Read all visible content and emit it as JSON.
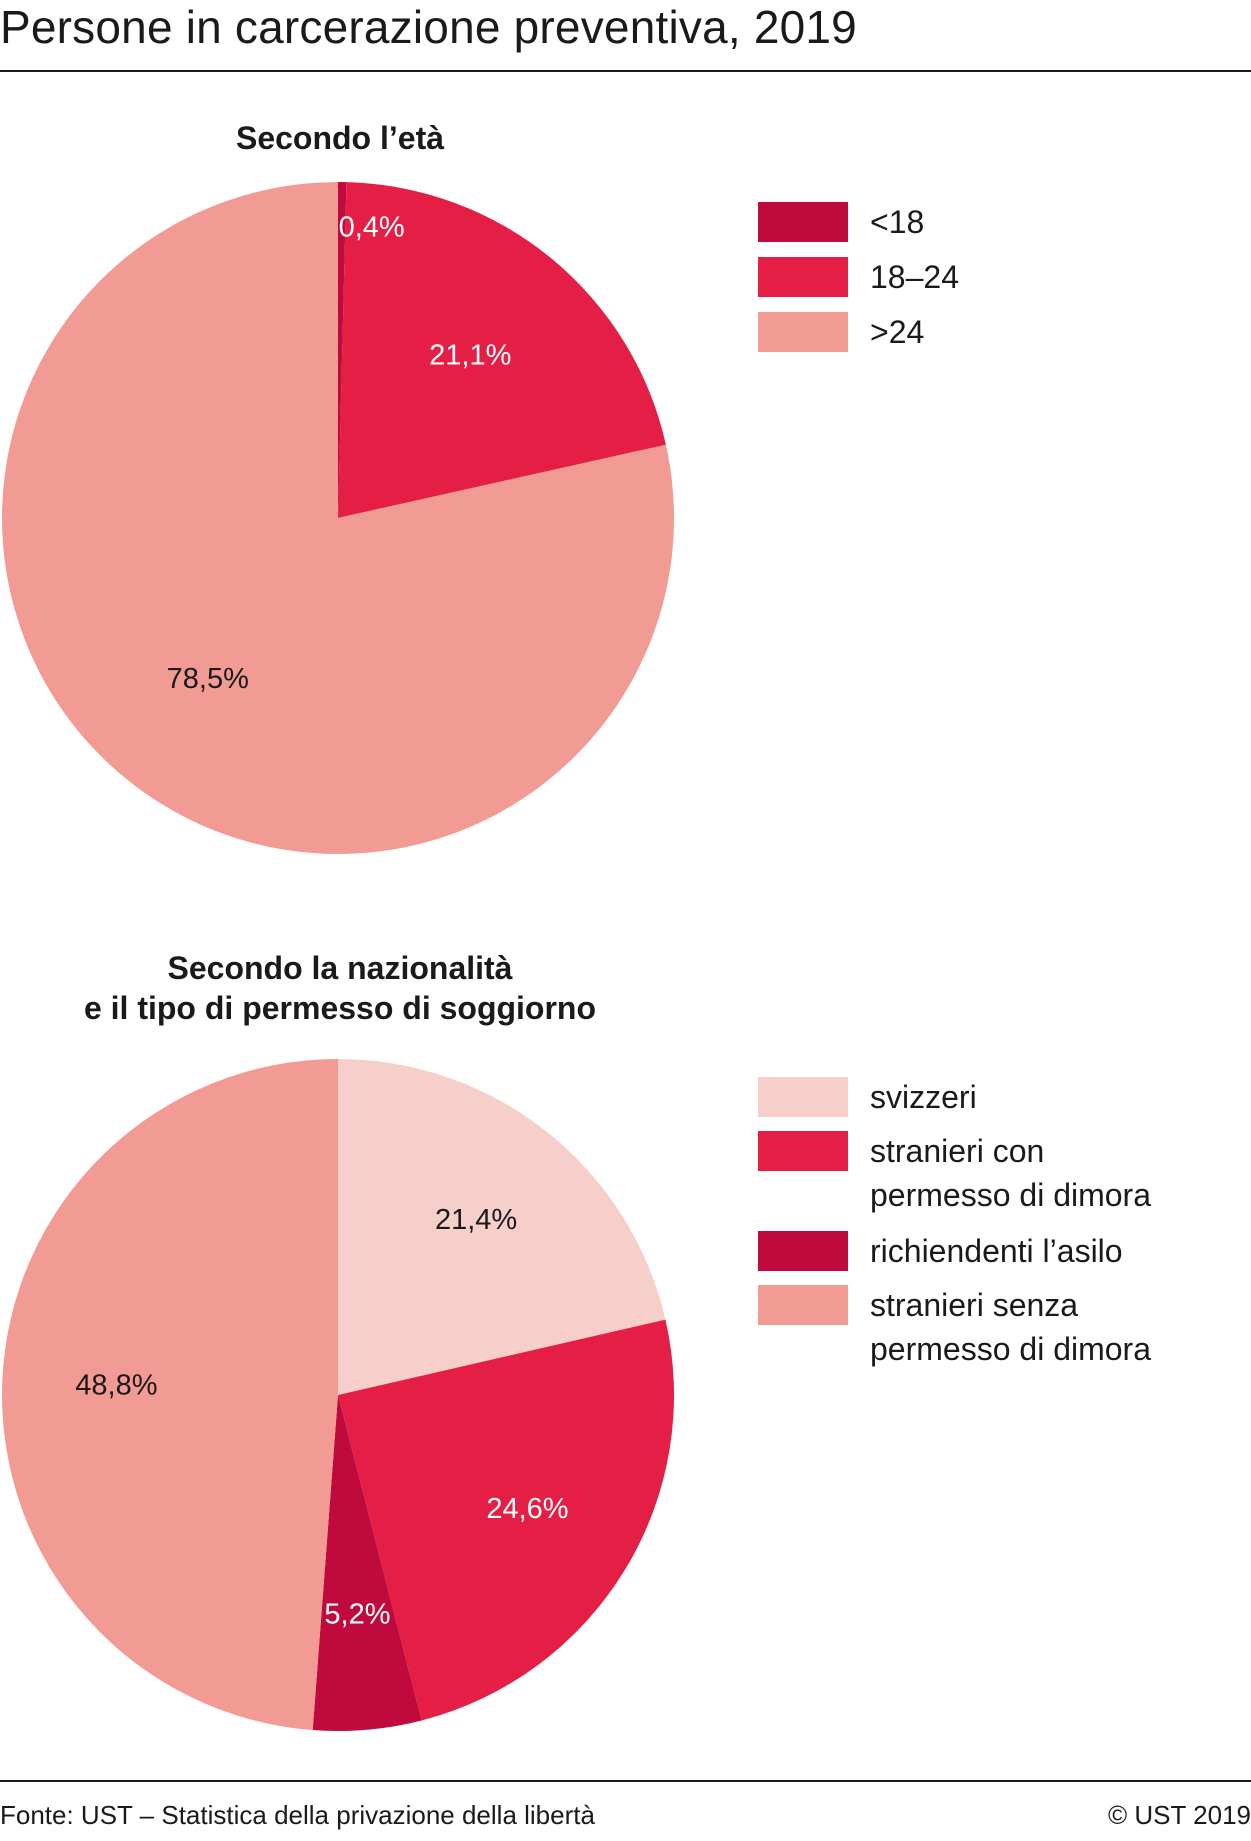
{
  "title": "Persone in carcerazione preventiva, 2019",
  "chart_data": [
    {
      "type": "pie",
      "title": "Secondo l’età",
      "slices": [
        {
          "label": "<18",
          "value": 0.4,
          "display": "0,4%",
          "color": "#c0093d",
          "label_color": "#ffffff"
        },
        {
          "label": "18–24",
          "value": 21.1,
          "display": "21,1%",
          "color": "#e41e44",
          "label_color": "#ffffff"
        },
        {
          "label": ">24",
          "value": 78.5,
          "display": "78,5%",
          "color": "#f29a94",
          "label_color": "#1a1a1a"
        }
      ]
    },
    {
      "type": "pie",
      "title": "Secondo la nazionalità\ne il tipo di permesso di soggiorno",
      "slices": [
        {
          "label": "svizzeri",
          "value": 21.4,
          "display": "21,4%",
          "color": "#f7cfca",
          "label_color": "#1a1a1a"
        },
        {
          "label": "stranieri con permesso di dimora",
          "value": 24.6,
          "display": "24,6%",
          "color": "#e41e44",
          "label_color": "#ffffff"
        },
        {
          "label": "richiendenti l’asilo",
          "value": 5.2,
          "display": "5,2%",
          "color": "#c0093d",
          "label_color": "#ffffff"
        },
        {
          "label": "stranieri senza permesso di dimora",
          "value": 48.8,
          "display": "48,8%",
          "color": "#f29a94",
          "label_color": "#1a1a1a"
        }
      ]
    }
  ],
  "legend_age": [
    "<18",
    "18–24",
    ">24"
  ],
  "legend_nat": [
    "svizzeri",
    "stranieri con\npermesso di dimora",
    "richiendenti l’asilo",
    "stranieri senza\npermesso di dimora"
  ],
  "footer": {
    "source": "Fonte: UST – Statistica della privazione della libertà",
    "copyright": "© UST 2019"
  }
}
